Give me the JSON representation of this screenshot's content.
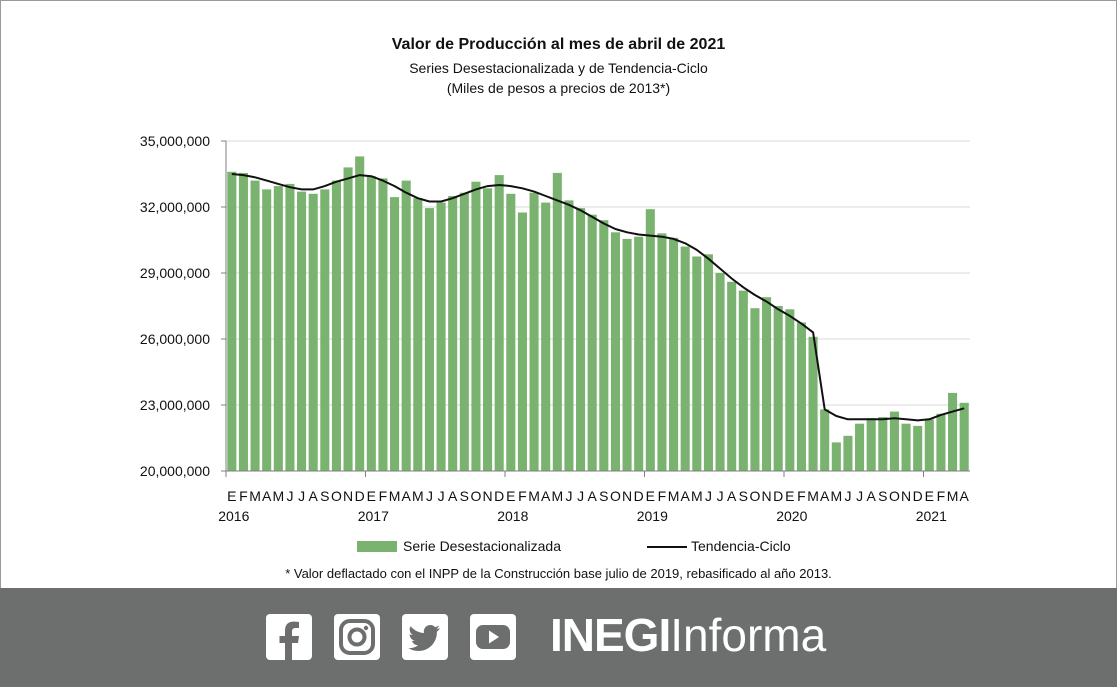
{
  "chart_data": {
    "type": "bar",
    "title": "Valor de Producción al mes de abril de 2021",
    "subtitle": "Series Desestacionalizada y de Tendencia-Ciclo",
    "subtitle2": "(Miles de pesos a precios de 2013*)",
    "ylim": [
      20000000,
      35000000
    ],
    "yticks": [
      20000000,
      23000000,
      26000000,
      29000000,
      32000000,
      35000000
    ],
    "ytick_labels": [
      "20,000,000",
      "23,000,000",
      "26,000,000",
      "29,000,000",
      "32,000,000",
      "35,000,000"
    ],
    "grid": true,
    "legend_position": "bottom",
    "month_labels": [
      "E",
      "F",
      "M",
      "A",
      "M",
      "J",
      "J",
      "A",
      "S",
      "O",
      "N",
      "D",
      "E",
      "F",
      "M",
      "A",
      "M",
      "J",
      "J",
      "A",
      "S",
      "O",
      "N",
      "D",
      "E",
      "F",
      "M",
      "A",
      "M",
      "J",
      "J",
      "A",
      "S",
      "O",
      "N",
      "D",
      "E",
      "F",
      "M",
      "A",
      "M",
      "J",
      "J",
      "A",
      "S",
      "O",
      "N",
      "D",
      "E",
      "F",
      "M",
      "A",
      "M",
      "J",
      "J",
      "A",
      "S",
      "O",
      "N",
      "D",
      "E",
      "F",
      "M",
      "A"
    ],
    "year_labels": [
      {
        "label": "2016",
        "index": 0
      },
      {
        "label": "2017",
        "index": 12
      },
      {
        "label": "2018",
        "index": 24
      },
      {
        "label": "2019",
        "index": 36
      },
      {
        "label": "2020",
        "index": 48
      },
      {
        "label": "2021",
        "index": 60
      }
    ],
    "series": [
      {
        "name": "Serie Desestacionalizada",
        "kind": "bar",
        "color": "#7ab26f",
        "values": [
          33600000,
          33550000,
          33200000,
          32800000,
          32950000,
          33050000,
          32700000,
          32600000,
          32800000,
          33200000,
          33800000,
          34300000,
          33400000,
          33300000,
          32450000,
          33200000,
          32400000,
          31950000,
          32200000,
          32500000,
          32650000,
          33150000,
          32850000,
          33450000,
          32600000,
          31750000,
          32650000,
          32200000,
          33550000,
          32300000,
          31950000,
          31650000,
          31400000,
          30850000,
          30550000,
          30650000,
          31900000,
          30800000,
          30600000,
          30200000,
          29750000,
          29850000,
          29000000,
          28600000,
          28200000,
          27400000,
          27900000,
          27500000,
          27350000,
          26750000,
          26100000,
          22800000,
          21300000,
          21600000,
          22150000,
          22400000,
          22450000,
          22700000,
          22150000,
          22050000,
          22350000,
          22600000,
          23550000,
          23100000
        ]
      },
      {
        "name": "Tendencia-Ciclo",
        "kind": "line",
        "color": "#111111",
        "values": [
          33500000,
          33450000,
          33350000,
          33200000,
          33050000,
          32900000,
          32800000,
          32800000,
          32950000,
          33150000,
          33300000,
          33450000,
          33400000,
          33200000,
          32950000,
          32650000,
          32400000,
          32250000,
          32250000,
          32400000,
          32600000,
          32800000,
          32950000,
          33000000,
          32950000,
          32850000,
          32700000,
          32500000,
          32300000,
          32100000,
          31850000,
          31550000,
          31250000,
          31000000,
          30850000,
          30750000,
          30700000,
          30650000,
          30550000,
          30350000,
          30050000,
          29650000,
          29200000,
          28750000,
          28350000,
          28000000,
          27700000,
          27350000,
          27050000,
          26700000,
          26300000,
          22800000,
          22500000,
          22350000,
          22350000,
          22350000,
          22350000,
          22400000,
          22350000,
          22300000,
          22350000,
          22550000,
          22700000,
          22850000
        ]
      }
    ]
  },
  "footnote": "* Valor deflactado con el INPP de la Construcción base julio de 2019, rebasificado al año 2013.",
  "footer": {
    "brand_bold": "INEGI",
    "brand_light": "Informa",
    "background": "#6d6e6e",
    "icons": [
      "facebook-icon",
      "instagram-icon",
      "twitter-icon",
      "youtube-icon"
    ]
  }
}
